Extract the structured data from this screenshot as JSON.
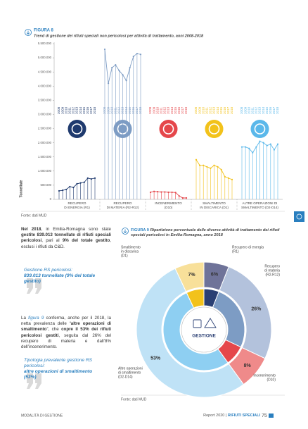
{
  "chart_data": [
    {
      "type": "line",
      "figure_label": "FIGURA 8",
      "title": "Trend di gestione dei rifiuti speciali non pericolosi per attività di trattamento, anni 2008-2018",
      "y_label": "Tonnellate",
      "categories": [
        "2008",
        "2009",
        "2010",
        "2011",
        "2012",
        "2013",
        "2014",
        "2015",
        "2016",
        "2017",
        "2018"
      ],
      "series": [
        {
          "name": [
            "RECUPERO",
            "DI ENERGIA (R1)"
          ],
          "color": "#1f3a6e",
          "values": [
            300000,
            320000,
            350000,
            450000,
            420000,
            550000,
            580000,
            600000,
            750000,
            720000,
            750000
          ]
        },
        {
          "name": [
            "RECUPERO",
            "DI MATERIA (R2-R12)"
          ],
          "color": "#7d9cc4",
          "values": [
            5300000,
            4100000,
            4650000,
            4750000,
            4550000,
            4400000,
            4200000,
            4650000,
            5050000,
            5150000,
            5120000
          ]
        },
        {
          "name": [
            "INCENERIMENTO",
            "(D10)"
          ],
          "color": "#e5474b",
          "values": [
            250000,
            280000,
            270000,
            260000,
            260000,
            250000,
            250000,
            240000,
            120000,
            50000,
            50000
          ]
        },
        {
          "name": [
            "SMALTIMENTO",
            "IN DISCARICA (D1)"
          ],
          "color": "#f2c21b",
          "values": [
            1400000,
            1200000,
            1200000,
            1150000,
            1100000,
            1200000,
            1150000,
            1050000,
            800000,
            750000,
            700000
          ]
        },
        {
          "name": [
            "ALTRE OPERAZIONI DI",
            "SMALTIMENTO (D2-D14)"
          ],
          "color": "#5bb8ea",
          "values": [
            1850000,
            1850000,
            1800000,
            1650000,
            1850000,
            2050000,
            2000000,
            1900000,
            1950000,
            1750000,
            1950000
          ]
        }
      ],
      "ylim": [
        0,
        5500000
      ],
      "yticks": [
        0,
        {
          "value": 500000,
          "label": "500.000"
        },
        {
          "value": 1000000,
          "label": "1.000.000"
        },
        {
          "value": 1500000,
          "label": "1.500.000"
        },
        {
          "value": 2000000,
          "label": "2.000.000"
        },
        {
          "value": 2500000,
          "label": "2.500.000"
        },
        {
          "value": 3000000,
          "label": "3.000.000"
        },
        {
          "value": 3500000,
          "label": "3.500.000"
        },
        {
          "value": 4000000,
          "label": "4.000.000"
        },
        {
          "value": 4500000,
          "label": "4.500.000"
        },
        {
          "value": 5000000,
          "label": "5.000.000"
        },
        {
          "value": 5500000,
          "label": "5.500.000"
        }
      ],
      "source": "Fonte: dati MUD"
    },
    {
      "type": "pie",
      "figure_label": "FIGURA 9",
      "title": "Ripartizione percentuale delle diverse attività di trattamento dei rifiuti speciali pericolosi in Emilia-Romagna, anno 2018",
      "categories": [
        [
          "Recupero di energia",
          "(R1)"
        ],
        [
          "Recupero",
          "di materia",
          "(R2-R12)"
        ],
        [
          "Incenerimento",
          "(D10)"
        ],
        [
          "Altre operazioni",
          "di smaltimento",
          "(D2-D14)"
        ],
        [
          "Smaltimento",
          "in discarica",
          "(D1)"
        ]
      ],
      "values": [
        6,
        26,
        8,
        53,
        7
      ],
      "value_labels": [
        "6%",
        "26%",
        "8%",
        "53%",
        "7%"
      ],
      "colors": [
        "#6f7399",
        "#b3c2dc",
        "#ef8a8a",
        "#bfe2f6",
        "#f8e09a"
      ],
      "colors_inner": [
        "#2a3f73",
        "#7d9cc4",
        "#e5474b",
        "#8ecff2",
        "#f2c21b"
      ],
      "center_label": "GESTIONE",
      "source": "Fonte: dati MUD"
    }
  ],
  "body": {
    "p1": [
      "Nel 2018",
      ", in Emilia-Romagna sono state ",
      "gestite 839.013 tonnellate di rifiuti speciali pericolosi",
      ", pari al ",
      "9% del totale gestito",
      ", esclusi i rifiuti da C&D."
    ],
    "quote1": [
      "Gestione RS pericolosi:",
      "839.013 tonnellate (9% del totale gestito)"
    ],
    "p2": [
      "La ",
      "figura 9",
      " conferma, anche per il 2018, la netta prevalenza delle “",
      "altre operazioni di smaltimento",
      "”, che ",
      "copre il 53% dei rifiuti pericolosi gestiti",
      ", seguita dal 26% del recupero di materia e dall’8% dell’incenerimento."
    ],
    "quote2": [
      "Tipologia prevalente gestione RS pericolosi:",
      "altre operazioni di smaltimento (53%)"
    ]
  },
  "footer": {
    "section": "MODALITÀ DI GESTIONE",
    "report": "Report 2020 | ",
    "series": "RIFIUTI SPECIALI",
    "page": "75"
  }
}
